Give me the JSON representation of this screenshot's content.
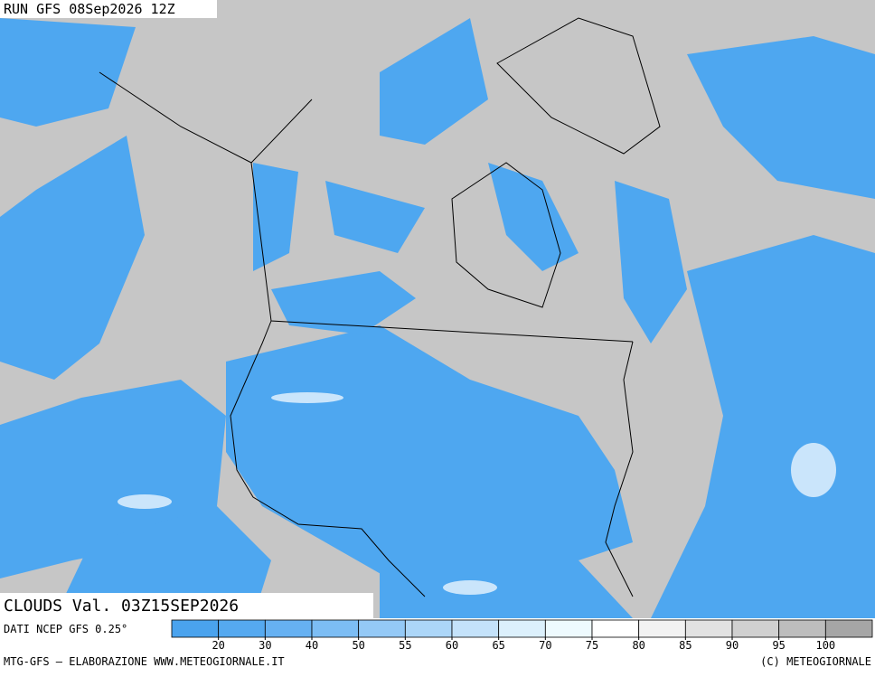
{
  "header": {
    "run": "RUN GFS 08Sep2026 12Z"
  },
  "map": {
    "title": "CLOUDS Val. 03Z15SEP2026"
  },
  "legend": {
    "source": "DATI NCEP GFS 0.25°",
    "ticks": [
      20,
      30,
      40,
      50,
      55,
      60,
      65,
      70,
      75,
      80,
      85,
      90,
      95,
      100
    ],
    "colors": [
      "#4aa3ee",
      "#55a9f0",
      "#66b1f2",
      "#7cbdf4",
      "#94c9f6",
      "#acd6f8",
      "#c4e2fa",
      "#dcf0fc",
      "#eefafe",
      "#ffffff",
      "#f2f2f2",
      "#e2e2e2",
      "#d0d0d0",
      "#bdbdbd",
      "#a6a6a6"
    ]
  },
  "footer": {
    "left": "MTG-GFS — ELABORAZIONE WWW.METEOGIORNALE.IT",
    "right": "(C) METEOGIORNALE"
  }
}
